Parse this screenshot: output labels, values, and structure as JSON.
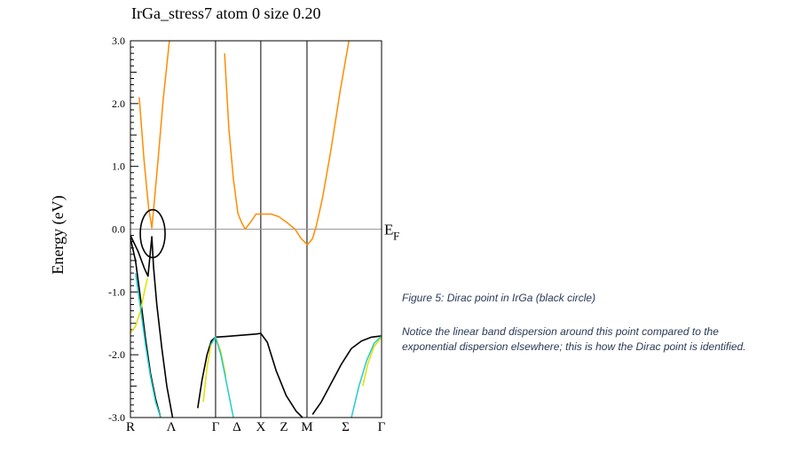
{
  "figure": {
    "title": "IrGa_stress7 atom  0    size 0.20",
    "caption_title": "Figure 5: Dirac point in IrGa (black circle)",
    "caption_body": "Notice the linear band dispersion around this point compared to the exponential dispersion elsewhere; this is how the Dirac point is identified."
  },
  "chart_data": {
    "type": "line",
    "title": "IrGa_stress7 atom  0    size 0.20",
    "ylabel": "Energy (eV)",
    "xlabel": "",
    "ylim": [
      -3.0,
      3.0
    ],
    "xlim": [
      0,
      1
    ],
    "yticks": [
      {
        "value": 3.0,
        "label": "3.0"
      },
      {
        "value": 2.0,
        "label": "2.0"
      },
      {
        "value": 1.0,
        "label": "1.0"
      },
      {
        "value": 0.0,
        "label": "0.0"
      },
      {
        "value": -1.0,
        "label": "-1.0"
      },
      {
        "value": -2.0,
        "label": "-2.0"
      },
      {
        "value": -3.0,
        "label": "-3.0"
      }
    ],
    "kpoints": [
      {
        "label": "R",
        "x": 0.0,
        "line": false
      },
      {
        "label": "Λ",
        "x": 0.163,
        "line": false
      },
      {
        "label": "Γ",
        "x": 0.339,
        "line": true
      },
      {
        "label": "Δ",
        "x": 0.424,
        "line": false
      },
      {
        "label": "X",
        "x": 0.519,
        "line": true
      },
      {
        "label": "Z",
        "x": 0.611,
        "line": false
      },
      {
        "label": "M",
        "x": 0.703,
        "line": true
      },
      {
        "label": "Σ",
        "x": 0.857,
        "line": false
      },
      {
        "label": "Γ",
        "x": 1.0,
        "line": false
      }
    ],
    "fermi_level": {
      "label": "E",
      "sub": "F",
      "value": 0.0
    },
    "dirac_point": {
      "x": 0.085,
      "y": -0.1
    },
    "colors": {
      "orange": "#ff8c00",
      "black": "#000000",
      "cyan": "#22cccc",
      "yellow": "#e0e000",
      "fermi": "#9a9a9a"
    },
    "series": [
      {
        "color": "orange",
        "points": [
          [
            0.035,
            2.1
          ],
          [
            0.054,
            1.1
          ],
          [
            0.072,
            0.35
          ],
          [
            0.078,
            0.2
          ],
          [
            0.085,
            0.02
          ],
          [
            0.092,
            0.3
          ],
          [
            0.11,
            1.1
          ],
          [
            0.13,
            2.05
          ],
          [
            0.155,
            3.0
          ]
        ]
      },
      {
        "color": "orange",
        "points": [
          [
            0.375,
            2.8
          ],
          [
            0.392,
            1.6
          ],
          [
            0.41,
            0.8
          ],
          [
            0.428,
            0.25
          ],
          [
            0.443,
            0.1
          ],
          [
            0.457,
            0.0
          ],
          [
            0.48,
            0.12
          ],
          [
            0.5,
            0.24
          ],
          [
            0.53,
            0.24
          ],
          [
            0.56,
            0.24
          ],
          [
            0.59,
            0.2
          ],
          [
            0.625,
            0.1
          ],
          [
            0.655,
            0.0
          ],
          [
            0.68,
            -0.15
          ],
          [
            0.705,
            -0.25
          ],
          [
            0.725,
            -0.15
          ],
          [
            0.74,
            0.05
          ],
          [
            0.765,
            0.5
          ],
          [
            0.8,
            1.3
          ],
          [
            0.835,
            2.2
          ],
          [
            0.87,
            3.0
          ]
        ]
      },
      {
        "color": "black",
        "points": [
          [
            0.0,
            -0.1
          ],
          [
            0.03,
            -0.35
          ],
          [
            0.055,
            -0.62
          ],
          [
            0.07,
            -0.75
          ],
          [
            0.085,
            -0.12
          ],
          [
            0.092,
            -0.6
          ],
          [
            0.105,
            -1.2
          ],
          [
            0.125,
            -1.9
          ],
          [
            0.145,
            -2.5
          ],
          [
            0.168,
            -3.0
          ]
        ]
      },
      {
        "color": "black",
        "points": [
          [
            0.0,
            -0.15
          ],
          [
            0.02,
            -0.5
          ],
          [
            0.04,
            -1.1
          ],
          [
            0.06,
            -1.75
          ],
          [
            0.08,
            -2.3
          ],
          [
            0.1,
            -2.7
          ],
          [
            0.12,
            -3.0
          ]
        ]
      },
      {
        "color": "black",
        "points": [
          [
            0.268,
            -2.85
          ],
          [
            0.285,
            -2.4
          ],
          [
            0.305,
            -2.0
          ],
          [
            0.322,
            -1.78
          ],
          [
            0.339,
            -1.72
          ],
          [
            0.38,
            -1.71
          ],
          [
            0.44,
            -1.69
          ],
          [
            0.5,
            -1.67
          ],
          [
            0.519,
            -1.66
          ],
          [
            0.545,
            -1.8
          ],
          [
            0.58,
            -2.25
          ],
          [
            0.62,
            -2.65
          ],
          [
            0.66,
            -2.9
          ],
          [
            0.685,
            -3.0
          ]
        ]
      },
      {
        "color": "black",
        "points": [
          [
            0.725,
            -2.95
          ],
          [
            0.76,
            -2.75
          ],
          [
            0.8,
            -2.45
          ],
          [
            0.84,
            -2.15
          ],
          [
            0.88,
            -1.9
          ],
          [
            0.92,
            -1.78
          ],
          [
            0.96,
            -1.72
          ],
          [
            1.0,
            -1.7
          ]
        ]
      },
      {
        "color": "yellow",
        "points": [
          [
            0.0,
            -1.65
          ],
          [
            0.02,
            -1.55
          ],
          [
            0.04,
            -1.3
          ],
          [
            0.058,
            -0.95
          ],
          [
            0.068,
            -0.78
          ]
        ]
      },
      {
        "color": "cyan",
        "points": [
          [
            0.02,
            -0.7
          ],
          [
            0.04,
            -1.25
          ],
          [
            0.06,
            -1.85
          ],
          [
            0.08,
            -2.35
          ],
          [
            0.1,
            -2.75
          ],
          [
            0.12,
            -3.0
          ]
        ]
      },
      {
        "color": "yellow",
        "points": [
          [
            0.29,
            -2.75
          ],
          [
            0.305,
            -2.2
          ],
          [
            0.32,
            -1.85
          ],
          [
            0.339,
            -1.72
          ],
          [
            0.36,
            -1.95
          ],
          [
            0.38,
            -2.35
          ]
        ]
      },
      {
        "color": "cyan",
        "points": [
          [
            0.318,
            -1.85
          ],
          [
            0.339,
            -1.72
          ],
          [
            0.36,
            -2.0
          ],
          [
            0.385,
            -2.5
          ],
          [
            0.41,
            -3.0
          ]
        ]
      },
      {
        "color": "cyan",
        "points": [
          [
            0.88,
            -3.0
          ],
          [
            0.91,
            -2.5
          ],
          [
            0.94,
            -2.1
          ],
          [
            0.97,
            -1.82
          ],
          [
            1.0,
            -1.7
          ]
        ]
      },
      {
        "color": "yellow",
        "points": [
          [
            0.925,
            -2.5
          ],
          [
            0.945,
            -2.15
          ],
          [
            0.97,
            -1.87
          ],
          [
            1.0,
            -1.72
          ]
        ]
      }
    ]
  }
}
